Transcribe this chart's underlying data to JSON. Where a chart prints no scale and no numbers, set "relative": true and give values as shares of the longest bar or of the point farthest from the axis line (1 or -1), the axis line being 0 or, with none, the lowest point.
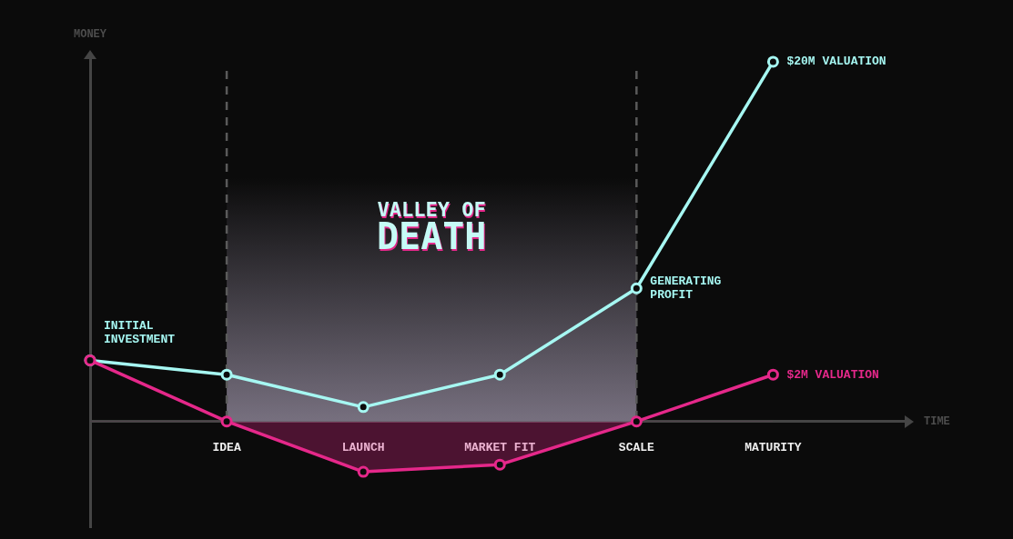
{
  "chart_data": {
    "type": "line",
    "relative": true,
    "xlabel": "TIME",
    "ylabel": "MONEY",
    "categories": [
      null,
      "IDEA",
      "LAUNCH",
      "MARKET FIT",
      "SCALE",
      "MATURITY"
    ],
    "series": [
      {
        "type": "line",
        "color": "#a6f7f2",
        "values": [
          0.17,
          0.13,
          0.04,
          0.13,
          0.37,
          1
        ]
      },
      {
        "type": "area",
        "color": "#e5288a",
        "values": [
          0.17,
          0,
          -0.14,
          -0.12,
          0,
          0.13
        ]
      }
    ],
    "marker": "circle",
    "grid": false,
    "legend": false,
    "ref_lines": [
      {
        "axis": "x",
        "value": "IDEA",
        "color": "#5a5a5a",
        "line_style": "dashed"
      },
      {
        "axis": "x",
        "value": "SCALE",
        "color": "#5a5a5a",
        "line_style": "dashed"
      }
    ],
    "bands": [
      {
        "axis": "x",
        "from": "IDEA",
        "to": "SCALE",
        "label": "VALLEY OF DEATH",
        "color": "#77707f"
      }
    ],
    "annotations": [
      {
        "text": "INITIAL INVESTMENT",
        "y": 0.17
      },
      {
        "text": "GENERATING PROFIT",
        "x": "SCALE",
        "y": 0.37
      },
      {
        "text": "$20M VALUATION",
        "x": "MATURITY",
        "y": 1
      },
      {
        "text": "$2M VALUATION",
        "x": "MATURITY",
        "y": 0.13
      }
    ]
  }
}
